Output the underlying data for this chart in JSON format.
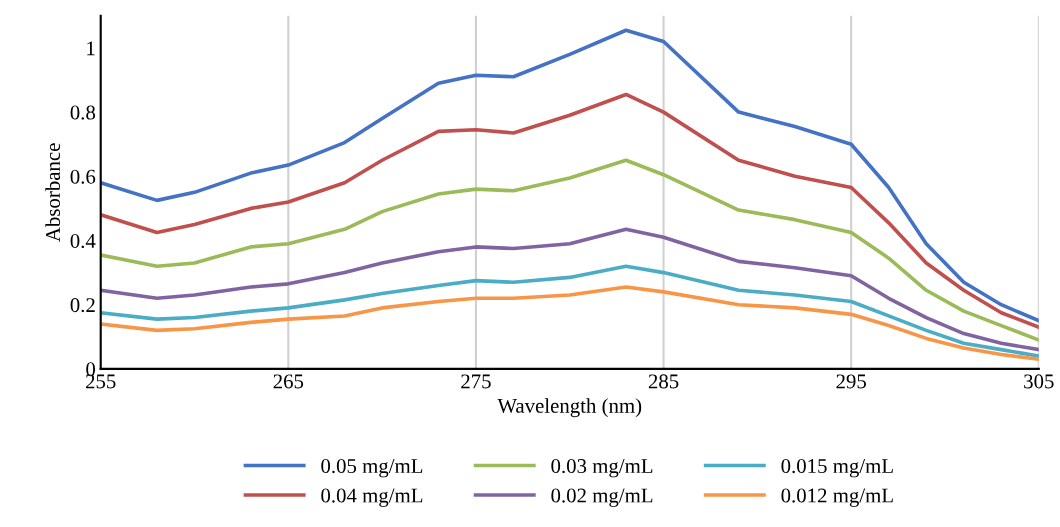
{
  "chart_data": {
    "type": "line",
    "xlabel": "Wavelength (nm)",
    "ylabel": "Absorbance",
    "x": [
      255,
      258,
      260,
      263,
      265,
      268,
      270,
      273,
      275,
      277,
      280,
      283,
      285,
      289,
      292,
      295,
      297,
      299,
      301,
      303,
      305
    ],
    "series": [
      {
        "name": "0.05 mg/mL",
        "color": "#4472c4",
        "values": [
          0.58,
          0.525,
          0.55,
          0.61,
          0.635,
          0.705,
          0.78,
          0.89,
          0.915,
          0.91,
          0.98,
          1.055,
          1.02,
          0.8,
          0.755,
          0.7,
          0.565,
          0.39,
          0.27,
          0.2,
          0.15
        ]
      },
      {
        "name": "0.04 mg/mL",
        "color": "#c0504d",
        "values": [
          0.48,
          0.425,
          0.45,
          0.5,
          0.52,
          0.58,
          0.65,
          0.74,
          0.745,
          0.735,
          0.79,
          0.855,
          0.8,
          0.65,
          0.6,
          0.565,
          0.455,
          0.33,
          0.245,
          0.175,
          0.13
        ]
      },
      {
        "name": "0.03 mg/mL",
        "color": "#9bbb59",
        "values": [
          0.355,
          0.32,
          0.33,
          0.38,
          0.39,
          0.435,
          0.49,
          0.545,
          0.56,
          0.555,
          0.595,
          0.65,
          0.605,
          0.495,
          0.465,
          0.425,
          0.345,
          0.245,
          0.18,
          0.135,
          0.09
        ]
      },
      {
        "name": "0.02 mg/mL",
        "color": "#8064a2",
        "values": [
          0.245,
          0.22,
          0.23,
          0.255,
          0.265,
          0.3,
          0.33,
          0.365,
          0.38,
          0.375,
          0.39,
          0.435,
          0.41,
          0.335,
          0.315,
          0.29,
          0.22,
          0.16,
          0.11,
          0.08,
          0.06
        ]
      },
      {
        "name": "0.015 mg/mL",
        "color": "#4bacc6",
        "values": [
          0.175,
          0.155,
          0.16,
          0.18,
          0.19,
          0.215,
          0.235,
          0.26,
          0.275,
          0.27,
          0.285,
          0.32,
          0.3,
          0.245,
          0.23,
          0.21,
          0.165,
          0.12,
          0.08,
          0.06,
          0.04
        ]
      },
      {
        "name": "0.012 mg/mL",
        "color": "#f79646",
        "values": [
          0.14,
          0.12,
          0.125,
          0.145,
          0.155,
          0.165,
          0.19,
          0.21,
          0.22,
          0.22,
          0.23,
          0.255,
          0.24,
          0.2,
          0.19,
          0.17,
          0.135,
          0.095,
          0.065,
          0.045,
          0.03
        ]
      }
    ],
    "xlim": [
      255,
      305
    ],
    "xticks": [
      255,
      265,
      275,
      285,
      295,
      305
    ],
    "ylim": [
      0,
      1.1
    ],
    "yticks": [
      0,
      0.2,
      0.4,
      0.6,
      0.8,
      1
    ],
    "grid": "x",
    "legend": "bottom",
    "line_style": "solid",
    "marker": "none"
  }
}
